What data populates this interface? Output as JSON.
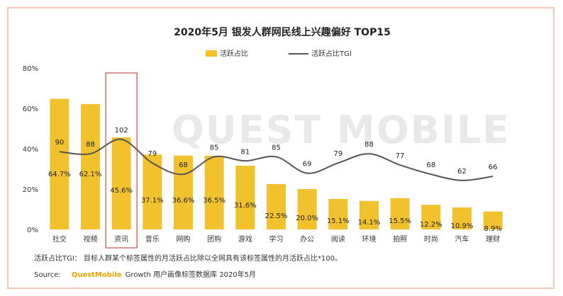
{
  "chart_data": {
    "type": "bar",
    "title": "2020年5月 银发人群网民线上兴趣偏好 TOP15",
    "legend": [
      "活跃占比",
      "活跃占比TGI"
    ],
    "categories": [
      "社交",
      "视频",
      "资讯",
      "音乐",
      "网购",
      "团购",
      "游戏",
      "学习",
      "办公",
      "阅读",
      "环境",
      "拍照",
      "时尚",
      "汽车",
      "理财"
    ],
    "series": [
      {
        "name": "活跃占比",
        "type": "bar",
        "values": [
          64.7,
          62.1,
          45.6,
          37.1,
          36.6,
          36.5,
          31.6,
          22.5,
          20.0,
          15.1,
          14.1,
          15.5,
          12.2,
          10.9,
          8.9
        ],
        "labels": [
          "64.7%",
          "62.1%",
          "45.6%",
          "37.1%",
          "36.6%",
          "36.5%",
          "31.6%",
          "22.5%",
          "20.0%",
          "15.1%",
          "14.1%",
          "15.5%",
          "12.2%",
          "10.9%",
          "8.9%"
        ]
      },
      {
        "name": "活跃占比TGI",
        "type": "line",
        "values": [
          90,
          88,
          102,
          79,
          68,
          85,
          81,
          85,
          69,
          79,
          88,
          77,
          68,
          62,
          66
        ]
      }
    ],
    "y_ticks": [
      "0%",
      "20%",
      "40%",
      "60%",
      "80%"
    ],
    "ylim": [
      0,
      80
    ],
    "highlight_category": "资讯",
    "grid": false,
    "legend_position": "top-center"
  },
  "watermark": "QUEST MOBILE",
  "note": "活跃占比TGI：  目标人群某个标签属性的月活跃占比除以全网具有该标签属性的月活跃占比*100。",
  "source_label": "Source:",
  "source_brand": "QuestMobile",
  "source_rest": "Growth 用户画像标签数据库 2020年5月",
  "colors": {
    "bar": "#f2c12e",
    "line": "#555555",
    "highlight": "#c0504d"
  }
}
